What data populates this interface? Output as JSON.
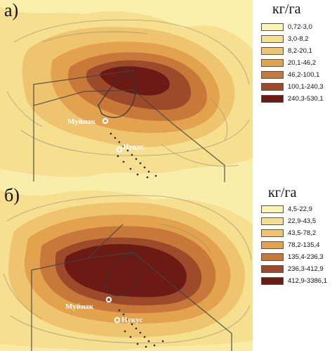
{
  "panels": [
    {
      "letter": "а)",
      "unit": "кг/га",
      "legend": [
        {
          "label": "0,72-3,0",
          "color": "#fbf4b3"
        },
        {
          "label": "3,0-8,2",
          "color": "#f6df8f"
        },
        {
          "label": "8,2-20,1",
          "color": "#efc46f"
        },
        {
          "label": "20,1-46,2",
          "color": "#e2a24e"
        },
        {
          "label": "46,2-100,1",
          "color": "#c8793a"
        },
        {
          "label": "100,1-240,3",
          "color": "#9c4a2a"
        },
        {
          "label": "240,3-530,1",
          "color": "#6d1a14"
        }
      ],
      "cities": [
        "Муйнак",
        "Нукус"
      ]
    },
    {
      "letter": "б)",
      "unit": "кг/га",
      "legend": [
        {
          "label": "4,5-22,9",
          "color": "#fbf4b3"
        },
        {
          "label": "22,9-43,5",
          "color": "#f6df8f"
        },
        {
          "label": "43,5-78,2",
          "color": "#efc46f"
        },
        {
          "label": "78,2-135,4",
          "color": "#e2a24e"
        },
        {
          "label": "135,4-236,3",
          "color": "#c8793a"
        },
        {
          "label": "236,3-412,9",
          "color": "#9c4a2a"
        },
        {
          "label": "412,9-3386,1",
          "color": "#6d1a14"
        }
      ],
      "cities": [
        "Муйнак",
        "Нукус"
      ]
    }
  ]
}
